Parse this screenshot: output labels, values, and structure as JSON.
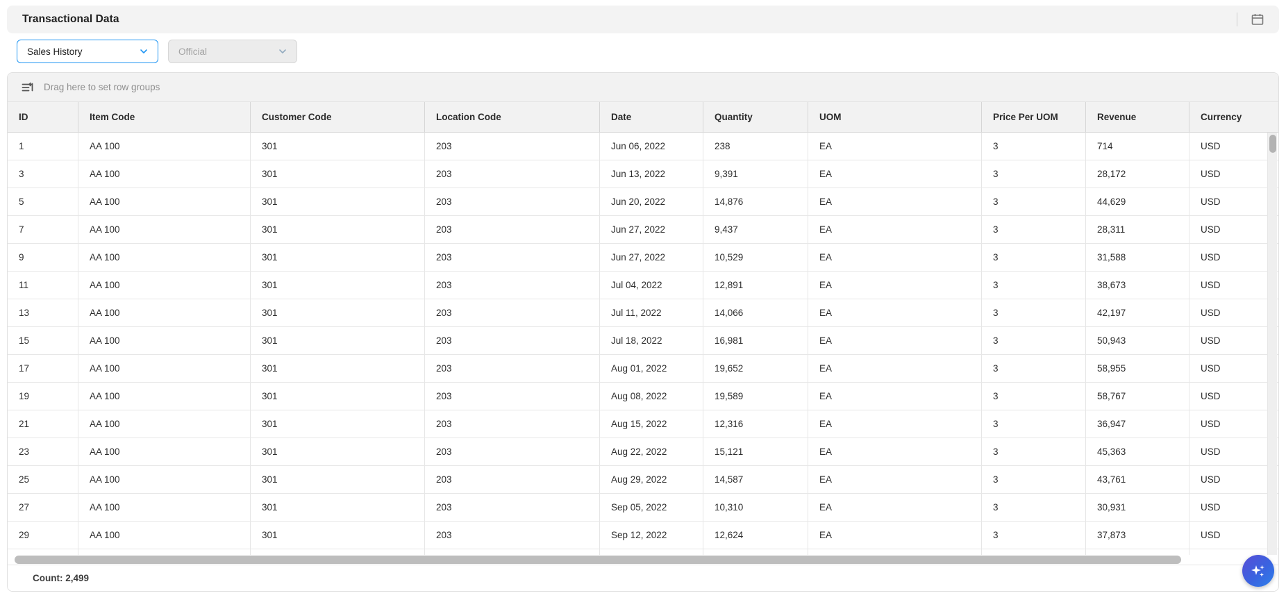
{
  "header": {
    "title": "Transactional Data",
    "calendar_icon": "calendar-icon"
  },
  "filters": {
    "dataset_select": {
      "value": "Sales History",
      "disabled": false
    },
    "version_select": {
      "value": "Official",
      "disabled": true
    }
  },
  "grid": {
    "drag_hint": "Drag here to set row groups",
    "columns": [
      "ID",
      "Item Code",
      "Customer Code",
      "Location Code",
      "Date",
      "Quantity",
      "UOM",
      "Price Per UOM",
      "Revenue",
      "Currency"
    ],
    "rows": [
      [
        "1",
        "AA 100",
        "301",
        "203",
        "Jun 06, 2022",
        "238",
        "EA",
        "3",
        "714",
        "USD"
      ],
      [
        "3",
        "AA 100",
        "301",
        "203",
        "Jun 13, 2022",
        "9,391",
        "EA",
        "3",
        "28,172",
        "USD"
      ],
      [
        "5",
        "AA 100",
        "301",
        "203",
        "Jun 20, 2022",
        "14,876",
        "EA",
        "3",
        "44,629",
        "USD"
      ],
      [
        "7",
        "AA 100",
        "301",
        "203",
        "Jun 27, 2022",
        "9,437",
        "EA",
        "3",
        "28,311",
        "USD"
      ],
      [
        "9",
        "AA 100",
        "301",
        "203",
        "Jun 27, 2022",
        "10,529",
        "EA",
        "3",
        "31,588",
        "USD"
      ],
      [
        "11",
        "AA 100",
        "301",
        "203",
        "Jul 04, 2022",
        "12,891",
        "EA",
        "3",
        "38,673",
        "USD"
      ],
      [
        "13",
        "AA 100",
        "301",
        "203",
        "Jul 11, 2022",
        "14,066",
        "EA",
        "3",
        "42,197",
        "USD"
      ],
      [
        "15",
        "AA 100",
        "301",
        "203",
        "Jul 18, 2022",
        "16,981",
        "EA",
        "3",
        "50,943",
        "USD"
      ],
      [
        "17",
        "AA 100",
        "301",
        "203",
        "Aug 01, 2022",
        "19,652",
        "EA",
        "3",
        "58,955",
        "USD"
      ],
      [
        "19",
        "AA 100",
        "301",
        "203",
        "Aug 08, 2022",
        "19,589",
        "EA",
        "3",
        "58,767",
        "USD"
      ],
      [
        "21",
        "AA 100",
        "301",
        "203",
        "Aug 15, 2022",
        "12,316",
        "EA",
        "3",
        "36,947",
        "USD"
      ],
      [
        "23",
        "AA 100",
        "301",
        "203",
        "Aug 22, 2022",
        "15,121",
        "EA",
        "3",
        "45,363",
        "USD"
      ],
      [
        "25",
        "AA 100",
        "301",
        "203",
        "Aug 29, 2022",
        "14,587",
        "EA",
        "3",
        "43,761",
        "USD"
      ],
      [
        "27",
        "AA 100",
        "301",
        "203",
        "Sep 05, 2022",
        "10,310",
        "EA",
        "3",
        "30,931",
        "USD"
      ],
      [
        "29",
        "AA 100",
        "301",
        "203",
        "Sep 12, 2022",
        "12,624",
        "EA",
        "3",
        "37,873",
        "USD"
      ]
    ]
  },
  "status_bar": {
    "count": "Count: 2,499"
  },
  "fab": {
    "icon": "ai-sparkle-icon"
  },
  "colors": {
    "accent_blue": "#2196f3",
    "panel_grey": "#f2f2f2",
    "fab_gradient_start": "#584ed6",
    "fab_gradient_end": "#2e80ea",
    "text_dark": "#2e2e2e",
    "text_muted": "#8f8f8f"
  }
}
